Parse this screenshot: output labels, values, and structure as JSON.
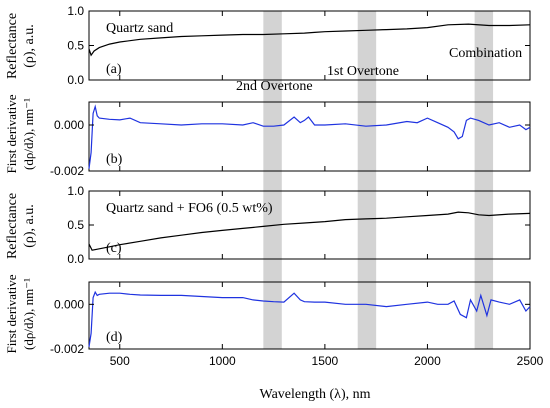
{
  "chart_data": {
    "type": "line",
    "xlabel": "Wavelength (λ), nm",
    "xlim": [
      350,
      2500
    ],
    "xticks": [
      "500",
      "1000",
      "1500",
      "2000",
      "2500"
    ],
    "bands": [
      {
        "name": "2nd Overtone",
        "range": [
          1200,
          1290
        ]
      },
      {
        "name": "1st Overtone",
        "range": [
          1660,
          1750
        ]
      },
      {
        "name": "Combination",
        "range": [
          2230,
          2320
        ]
      }
    ],
    "panels": [
      {
        "id": "a",
        "label": "(a)",
        "title": "Quartz sand",
        "ylabel_line1": "Reflectance",
        "ylabel_line2": "(ρ), a.u.",
        "ylim": [
          0.0,
          1.0
        ],
        "yticks": [
          "0.0",
          "0.5",
          "1.0"
        ],
        "color": "#000000",
        "x": [
          350,
          360,
          375,
          400,
          450,
          500,
          600,
          700,
          800,
          900,
          1000,
          1100,
          1200,
          1300,
          1400,
          1450,
          1500,
          1600,
          1700,
          1800,
          1900,
          2000,
          2100,
          2200,
          2300,
          2400,
          2500
        ],
        "values": [
          0.45,
          0.36,
          0.42,
          0.47,
          0.52,
          0.55,
          0.59,
          0.61,
          0.63,
          0.64,
          0.65,
          0.66,
          0.66,
          0.67,
          0.68,
          0.69,
          0.7,
          0.71,
          0.72,
          0.73,
          0.74,
          0.76,
          0.8,
          0.81,
          0.79,
          0.79,
          0.8
        ]
      },
      {
        "id": "b",
        "label": "(b)",
        "title": "",
        "ylabel_line1": "First derivative",
        "ylabel_line2": "(dρ/dλ), nm⁻¹",
        "ylim": [
          -0.002,
          0.001
        ],
        "yticks": [
          "-0.002",
          "0.000"
        ],
        "color": "#1f33e0",
        "x": [
          350,
          360,
          370,
          380,
          390,
          400,
          450,
          500,
          550,
          600,
          700,
          800,
          900,
          1000,
          1100,
          1150,
          1200,
          1250,
          1300,
          1350,
          1380,
          1400,
          1420,
          1450,
          1500,
          1600,
          1700,
          1800,
          1900,
          1950,
          2000,
          2050,
          2100,
          2130,
          2150,
          2170,
          2190,
          2210,
          2250,
          2300,
          2350,
          2400,
          2450,
          2480,
          2500
        ],
        "values": [
          -0.0019,
          -0.0012,
          0.0005,
          0.0008,
          0.0004,
          0.0003,
          0.00025,
          0.00022,
          0.0003,
          0.0001,
          5e-05,
          0.0,
          5e-05,
          5e-05,
          0.0,
          0.0001,
          -5e-05,
          -5e-05,
          0.0,
          0.00035,
          0.0001,
          0.0002,
          0.00035,
          0.0,
          0.0,
          5e-05,
          -5e-05,
          0.0,
          0.00015,
          0.0001,
          0.0003,
          0.0001,
          -0.0001,
          -0.0003,
          -0.0006,
          -0.0005,
          0.0002,
          0.0003,
          0.0002,
          0.0,
          0.0001,
          -0.0001,
          0.0,
          -0.0002,
          -0.0001
        ]
      },
      {
        "id": "c",
        "label": "(c)",
        "title": "Quartz sand + FO6 (0.5 wt%)",
        "ylabel_line1": "Reflectance",
        "ylabel_line2": "(ρ), a.u.",
        "ylim": [
          0.0,
          1.0
        ],
        "yticks": [
          "0.0",
          "0.5",
          "1.0"
        ],
        "color": "#000000",
        "x": [
          350,
          365,
          400,
          450,
          500,
          600,
          700,
          800,
          900,
          1000,
          1100,
          1200,
          1300,
          1400,
          1500,
          1600,
          1700,
          1800,
          1900,
          2000,
          2100,
          2150,
          2200,
          2250,
          2300,
          2400,
          2500
        ],
        "values": [
          0.22,
          0.13,
          0.15,
          0.18,
          0.21,
          0.26,
          0.31,
          0.35,
          0.39,
          0.42,
          0.45,
          0.48,
          0.51,
          0.53,
          0.55,
          0.58,
          0.59,
          0.6,
          0.62,
          0.64,
          0.66,
          0.69,
          0.68,
          0.65,
          0.64,
          0.66,
          0.67
        ]
      },
      {
        "id": "d",
        "label": "(d)",
        "title": "",
        "ylabel_line1": "First derivative",
        "ylabel_line2": "(dρ/dλ), nm⁻¹",
        "ylim": [
          -0.002,
          0.001
        ],
        "yticks": [
          "-0.002",
          "0.000"
        ],
        "color": "#1f33e0",
        "x": [
          350,
          360,
          370,
          380,
          390,
          400,
          450,
          500,
          550,
          600,
          700,
          800,
          900,
          1000,
          1100,
          1150,
          1200,
          1250,
          1300,
          1350,
          1380,
          1400,
          1450,
          1500,
          1600,
          1700,
          1800,
          1900,
          2000,
          2050,
          2100,
          2130,
          2160,
          2190,
          2210,
          2240,
          2260,
          2290,
          2310,
          2350,
          2400,
          2450,
          2480,
          2500
        ],
        "values": [
          -0.0019,
          -0.0013,
          0.0003,
          0.00055,
          0.0004,
          0.00045,
          0.0005,
          0.0005,
          0.00045,
          0.00042,
          0.0004,
          0.0004,
          0.00035,
          0.0003,
          0.0003,
          0.0002,
          0.00015,
          0.00012,
          0.0001,
          0.0005,
          0.0002,
          0.00012,
          0.0001,
          0.0001,
          0.0,
          0.0,
          -0.0001,
          0.0,
          0.0001,
          0.0,
          0.0,
          0.00015,
          -0.00045,
          -0.0006,
          0.0002,
          -0.0003,
          0.0004,
          -0.0005,
          0.0002,
          0.0001,
          0.0,
          0.0002,
          -0.0003,
          -0.0001
        ]
      }
    ]
  }
}
